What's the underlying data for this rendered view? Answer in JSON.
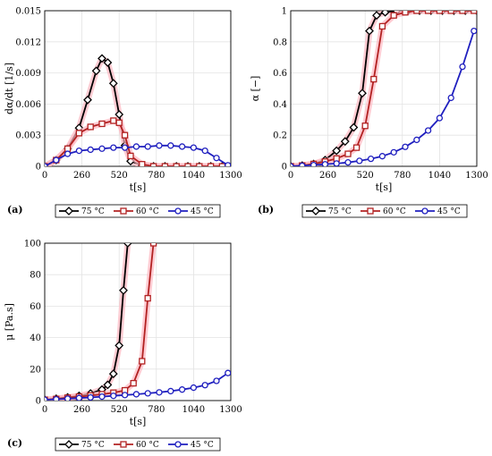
{
  "legend_labels": [
    "75 °C",
    "60 °C",
    "45 °C"
  ],
  "colors": {
    "75": "#000000",
    "60": "#b22222",
    "45": "#1f1fbf",
    "band": "#ffb6c1"
  },
  "chart_data": [
    {
      "panel_label": "(a)",
      "type": "line",
      "xlabel": "t[s]",
      "ylabel": "dα/dt [1/s]",
      "xlim": [
        0,
        1300
      ],
      "ylim": [
        0,
        0.015
      ],
      "x_ticks": [
        "0",
        "260",
        "520",
        "780",
        "1040",
        "1300"
      ],
      "y_ticks": [
        "0",
        "0.003",
        "0.006",
        "0.009",
        "0.012",
        "0.015"
      ],
      "grid": true,
      "legend_position": "below",
      "series": [
        {
          "name": "75 °C",
          "marker": "diamond",
          "x": [
            0,
            80,
            160,
            240,
            300,
            360,
            400,
            440,
            480,
            520,
            560,
            600,
            680,
            760,
            840,
            920,
            1000,
            1080,
            1160,
            1240
          ],
          "y": [
            0,
            0.0006,
            0.0017,
            0.0037,
            0.0064,
            0.0092,
            0.0104,
            0.01,
            0.008,
            0.005,
            0.002,
            0.0005,
            0.0001,
            0,
            0,
            0,
            0,
            0,
            0,
            0
          ]
        },
        {
          "name": "60 °C",
          "marker": "square",
          "x": [
            0,
            80,
            160,
            240,
            320,
            400,
            480,
            520,
            560,
            600,
            680,
            760,
            840,
            920,
            1000,
            1080,
            1160,
            1240
          ],
          "y": [
            0,
            0.0006,
            0.0017,
            0.0032,
            0.0038,
            0.0041,
            0.0044,
            0.0042,
            0.003,
            0.001,
            0.0002,
            0,
            0,
            0,
            0,
            0,
            0,
            0
          ]
        },
        {
          "name": "45 °C",
          "marker": "circle",
          "x": [
            0,
            80,
            160,
            240,
            320,
            400,
            480,
            560,
            640,
            720,
            800,
            880,
            960,
            1040,
            1120,
            1200,
            1280
          ],
          "y": [
            0,
            0.0006,
            0.0012,
            0.0015,
            0.0016,
            0.0017,
            0.0018,
            0.0018,
            0.0019,
            0.0019,
            0.002,
            0.002,
            0.0019,
            0.0018,
            0.0015,
            0.0008,
            0.0001
          ]
        }
      ]
    },
    {
      "panel_label": "(b)",
      "type": "line",
      "xlabel": "t[s]",
      "ylabel": "α [−]",
      "xlim": [
        0,
        1300
      ],
      "ylim": [
        0,
        1
      ],
      "x_ticks": [
        "0",
        "260",
        "520",
        "780",
        "1040",
        "1300"
      ],
      "y_ticks": [
        "0",
        "0.2",
        "0.4",
        "0.6",
        "0.8",
        "1"
      ],
      "grid": true,
      "legend_position": "below",
      "series": [
        {
          "name": "75 °C",
          "marker": "diamond",
          "x": [
            0,
            80,
            160,
            240,
            320,
            380,
            440,
            500,
            550,
            600,
            660,
            740,
            820,
            900,
            980,
            1060,
            1140,
            1220,
            1300
          ],
          "y": [
            0,
            0.005,
            0.015,
            0.04,
            0.1,
            0.16,
            0.25,
            0.47,
            0.87,
            0.97,
            0.99,
            1.0,
            1.0,
            1.0,
            1.0,
            1.0,
            1.0,
            1.0,
            1.0
          ]
        },
        {
          "name": "60 °C",
          "marker": "square",
          "x": [
            0,
            80,
            160,
            240,
            320,
            400,
            460,
            520,
            580,
            640,
            720,
            800,
            880,
            960,
            1040,
            1120,
            1200,
            1280
          ],
          "y": [
            0,
            0.005,
            0.015,
            0.03,
            0.05,
            0.08,
            0.12,
            0.26,
            0.56,
            0.9,
            0.97,
            0.99,
            1.0,
            1.0,
            1.0,
            1.0,
            1.0,
            1.0
          ]
        },
        {
          "name": "45 °C",
          "marker": "circle",
          "x": [
            0,
            80,
            160,
            240,
            320,
            400,
            480,
            560,
            640,
            720,
            800,
            880,
            960,
            1040,
            1120,
            1200,
            1280
          ],
          "y": [
            0,
            0.004,
            0.008,
            0.013,
            0.018,
            0.025,
            0.035,
            0.048,
            0.065,
            0.09,
            0.125,
            0.17,
            0.23,
            0.31,
            0.44,
            0.64,
            0.87
          ]
        }
      ]
    },
    {
      "panel_label": "(c)",
      "type": "line",
      "xlabel": "t[s]",
      "ylabel": "μ [Pa.s]",
      "xlim": [
        0,
        1300
      ],
      "ylim": [
        0,
        100
      ],
      "x_ticks": [
        "0",
        "260",
        "520",
        "780",
        "1040",
        "1300"
      ],
      "y_ticks": [
        "0",
        "20",
        "40",
        "60",
        "80",
        "100"
      ],
      "grid": true,
      "legend_position": "below",
      "series": [
        {
          "name": "75 °C",
          "marker": "diamond",
          "x": [
            0,
            80,
            160,
            240,
            320,
            400,
            440,
            480,
            520,
            550,
            580
          ],
          "y": [
            0.5,
            1.2,
            2.0,
            3.0,
            4.5,
            7,
            10,
            17,
            35,
            70,
            100
          ]
        },
        {
          "name": "60 °C",
          "marker": "square",
          "x": [
            0,
            80,
            160,
            240,
            320,
            400,
            480,
            560,
            620,
            680,
            720,
            760
          ],
          "y": [
            0.5,
            1.0,
            1.8,
            2.5,
            3.2,
            4.0,
            5.0,
            6.5,
            11,
            25,
            65,
            100
          ]
        },
        {
          "name": "45 °C",
          "marker": "circle",
          "x": [
            0,
            80,
            160,
            240,
            320,
            400,
            480,
            560,
            640,
            720,
            800,
            880,
            960,
            1040,
            1120,
            1200,
            1280
          ],
          "y": [
            0.5,
            0.8,
            1.2,
            1.6,
            2.0,
            2.5,
            3.0,
            3.5,
            4.0,
            4.6,
            5.2,
            6.0,
            7.0,
            8.2,
            9.8,
            12.5,
            17.5
          ]
        }
      ]
    }
  ]
}
